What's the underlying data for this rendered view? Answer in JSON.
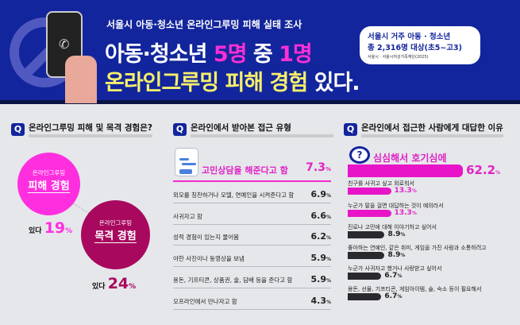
{
  "header": {
    "subtitle": "서울시 아동·청소년 온라인그루밍 피해 실태 조사",
    "title_a": "아동·청소년 ",
    "title_b": "5명",
    "title_c": " 중 ",
    "title_d": "1명",
    "title2_a": "온라인그루밍 피해 경험 ",
    "title2_b": "있다.",
    "bubble_line1": "서울시 거주 아동 · 청소년",
    "bubble_line2": "총 2,316명 대상(초5~고3)",
    "bubble_source": "서울시 · 서울시여성가족재단(2025)",
    "phone_icon": "phone-icon"
  },
  "sections": [
    {
      "q": "Q",
      "title": "온라인그루밍 피해 및 목격 경험은?",
      "items": [
        {
          "small": "온라인그루밍",
          "label": "피해 경험",
          "have": "있다",
          "value": "19",
          "unit": "%",
          "color": "#ff2fe0"
        },
        {
          "small": "온라인그루밍",
          "label": "목격 경험",
          "have": "있다",
          "value": "24",
          "unit": "%",
          "color": "#a8085e"
        }
      ]
    },
    {
      "q": "Q",
      "title": "온라인에서 받아본 접근 유형"
    },
    {
      "q": "Q",
      "title": "온라인에서 접근한 사람에게 대답한 이유"
    }
  ],
  "chart_data": [
    {
      "type": "table",
      "categories": [
        "고민상담을 해준다고 함",
        "외모를 칭찬하거나 모델, 연예인을 시켜준다고 함",
        "사귀자고 함",
        "성적 경험이 있는지 물어봄",
        "야한 사진이나 동영상을 보냄",
        "용돈, 기프티콘, 상품권, 술, 담배 등을 준다고 함",
        "오프라인에서 만나자고 함"
      ],
      "values": [
        7.3,
        6.9,
        6.6,
        6.2,
        5.9,
        5.9,
        4.3
      ],
      "unit": "%"
    },
    {
      "type": "bar",
      "categories": [
        "심심해서 호기심에",
        "친구를 사귀고 싶고 외로워서",
        "누군가 말을 걸면 대답하는 것이 예의라서",
        "진로나 고민에 대해 이야기하고 싶어서",
        "좋아하는 연예인, 같은 취미, 게임을 가진 사람과 소통하려고",
        "누군가 사귀자고 했거나 사랑받고 싶어서",
        "용돈, 선물, 기프티콘, 게임아이템, 술, 숙소 등이 필요해서"
      ],
      "values": [
        62.2,
        13.3,
        13.3,
        8.9,
        8.9,
        6.7,
        6.7
      ],
      "unit": "%",
      "colors": [
        "#e814c8",
        "#e814c8",
        "#e814c8",
        "#2a2a2e",
        "#2a2a2e",
        "#2a2a2e",
        "#2a2a2e"
      ]
    }
  ]
}
